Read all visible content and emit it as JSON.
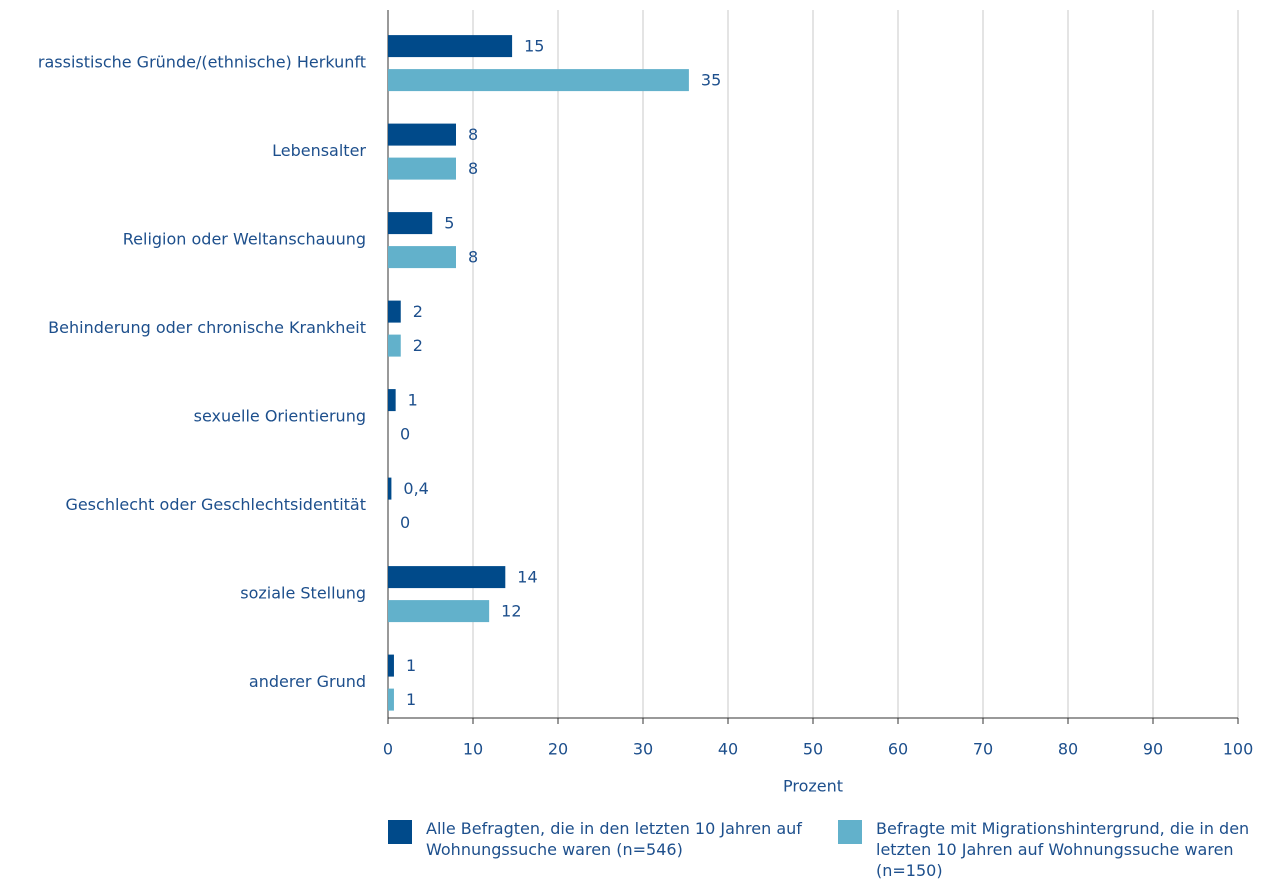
{
  "chart_data": {
    "type": "hbar",
    "categories": [
      "rassistische Gründe/(ethnische) Herkunft",
      "Lebensalter",
      "Religion oder Weltanschauung",
      "Behinderung oder chronische Krankheit",
      "sexuelle Orientierung",
      "Geschlecht oder Geschlechtsidentität",
      "soziale Stellung",
      "anderer Grund"
    ],
    "series": [
      {
        "name": "Alle Befragten, die in den letzten 10 Jahren auf Wohnungssuche waren (n=546)",
        "color": "#004a8a",
        "values": [
          14.6,
          8.0,
          5.2,
          1.5,
          0.9,
          0.4,
          13.8,
          0.7
        ],
        "value_labels": [
          "15",
          "8",
          "5",
          "2",
          "1",
          "0,4",
          "14",
          "1"
        ]
      },
      {
        "name": "Befragte mit Migrationshintergrund, die in den letzten 10 Jahren auf Wohnungssuche waren (n=150)",
        "color": "#62b1cb",
        "values": [
          35.4,
          8.0,
          8.0,
          1.5,
          0,
          0,
          11.9,
          0.7
        ],
        "value_labels": [
          "35",
          "8",
          "8",
          "2",
          "0",
          "0",
          "12",
          "1"
        ]
      }
    ],
    "xlabel": "Prozent",
    "xlim": [
      0,
      100
    ],
    "xticks": [
      0,
      10,
      20,
      30,
      40,
      50,
      60,
      70,
      80,
      90,
      100
    ],
    "grid": true
  }
}
